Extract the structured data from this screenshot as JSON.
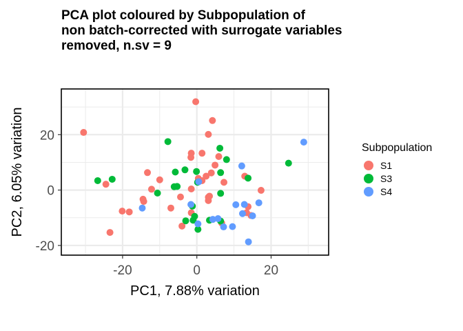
{
  "title_lines": [
    "PCA plot coloured by Subpopulation of",
    "non batch-corrected with surrogate variables",
    "removed, n.sv = 9"
  ],
  "legend": {
    "title": "Subpopulation",
    "items": [
      {
        "label": "S1",
        "color": "#F8766D"
      },
      {
        "label": "S3",
        "color": "#00BA38"
      },
      {
        "label": "S4",
        "color": "#619CFF"
      }
    ],
    "placement": "right"
  },
  "chart_data": {
    "type": "scatter",
    "xlabel": "PC1, 7.88% variation",
    "ylabel": "PC2, 6.05% variation",
    "xlim": [
      -36.5,
      35.5
    ],
    "ylim": [
      -23.5,
      36.5
    ],
    "xticks": [
      -20,
      0,
      20
    ],
    "yticks": [
      -20,
      0,
      20
    ],
    "xtick_labels": [
      "-20",
      "0",
      "20"
    ],
    "ytick_labels": [
      "-20",
      "0",
      "20"
    ],
    "grid": true,
    "series": [
      {
        "name": "S1",
        "color": "#F8766D",
        "points": [
          [
            -30.5,
            20.8
          ],
          [
            -24.5,
            2.1
          ],
          [
            -20.1,
            -7.6
          ],
          [
            -18.2,
            -7.9
          ],
          [
            -23.4,
            -15.3
          ],
          [
            -14.5,
            -3.3
          ],
          [
            -14.3,
            -4.1
          ],
          [
            -13.3,
            6.3
          ],
          [
            -12.2,
            0.3
          ],
          [
            -10.0,
            3.7
          ],
          [
            -7.0,
            -6.5
          ],
          [
            -4.4,
            -2.5
          ],
          [
            -4.0,
            -13.0
          ],
          [
            -1.5,
            13.3
          ],
          [
            -1.6,
            11.8
          ],
          [
            -1.5,
            0.4
          ],
          [
            -1.5,
            -8.2
          ],
          [
            -0.3,
            31.9
          ],
          [
            0.4,
            4.2
          ],
          [
            1.4,
            3.4
          ],
          [
            1.4,
            13.3
          ],
          [
            2.5,
            5.0
          ],
          [
            3.1,
            -2.6
          ],
          [
            3.1,
            -3.8
          ],
          [
            3.4,
            -2.2
          ],
          [
            3.9,
            6.2
          ],
          [
            4.2,
            25.1
          ],
          [
            4.9,
            9.0
          ],
          [
            5.9,
            12.1
          ],
          [
            7.3,
            2.8
          ],
          [
            6.7,
            -11.9
          ],
          [
            3.1,
            20.1
          ],
          [
            12.9,
            5.0
          ],
          [
            13.4,
            -8.2
          ],
          [
            13.8,
            -6.0
          ],
          [
            14.6,
            -9.2
          ],
          [
            17.3,
            -0.1
          ]
        ]
      },
      {
        "name": "S3",
        "color": "#00BA38",
        "points": [
          [
            -26.7,
            3.4
          ],
          [
            -22.8,
            3.9
          ],
          [
            -10.6,
            -1.1
          ],
          [
            -7.8,
            17.5
          ],
          [
            -6.1,
            1.2
          ],
          [
            -5.8,
            6.5
          ],
          [
            -5.3,
            1.3
          ],
          [
            -3.2,
            7.3
          ],
          [
            -3.0,
            -11.1
          ],
          [
            -1.2,
            -5.8
          ],
          [
            -1.0,
            -10.9
          ],
          [
            -0.6,
            -9.5
          ],
          [
            -0.1,
            6.7
          ],
          [
            0.3,
            -14.2
          ],
          [
            0.2,
            2.8
          ],
          [
            3.4,
            -10.9
          ],
          [
            6.2,
            15.1
          ],
          [
            6.4,
            6.3
          ],
          [
            6.4,
            -1.2
          ],
          [
            6.4,
            -11.2
          ],
          [
            8.0,
            11.0
          ],
          [
            13.8,
            4.3
          ],
          [
            24.7,
            9.7
          ]
        ]
      },
      {
        "name": "S4",
        "color": "#619CFF",
        "points": [
          [
            -14.7,
            -6.5
          ],
          [
            -1.6,
            -5.2
          ],
          [
            0.3,
            -12.2
          ],
          [
            0.5,
            3.0
          ],
          [
            4.3,
            -10.6
          ],
          [
            5.7,
            -10.3
          ],
          [
            7.2,
            -13.3
          ],
          [
            9.6,
            -13.2
          ],
          [
            10.5,
            -5.3
          ],
          [
            12.1,
            8.7
          ],
          [
            12.3,
            -8.5
          ],
          [
            12.8,
            -5.2
          ],
          [
            13.9,
            -18.7
          ],
          [
            15.0,
            -9.3
          ],
          [
            16.7,
            -4.6
          ],
          [
            28.8,
            17.3
          ]
        ]
      }
    ]
  }
}
